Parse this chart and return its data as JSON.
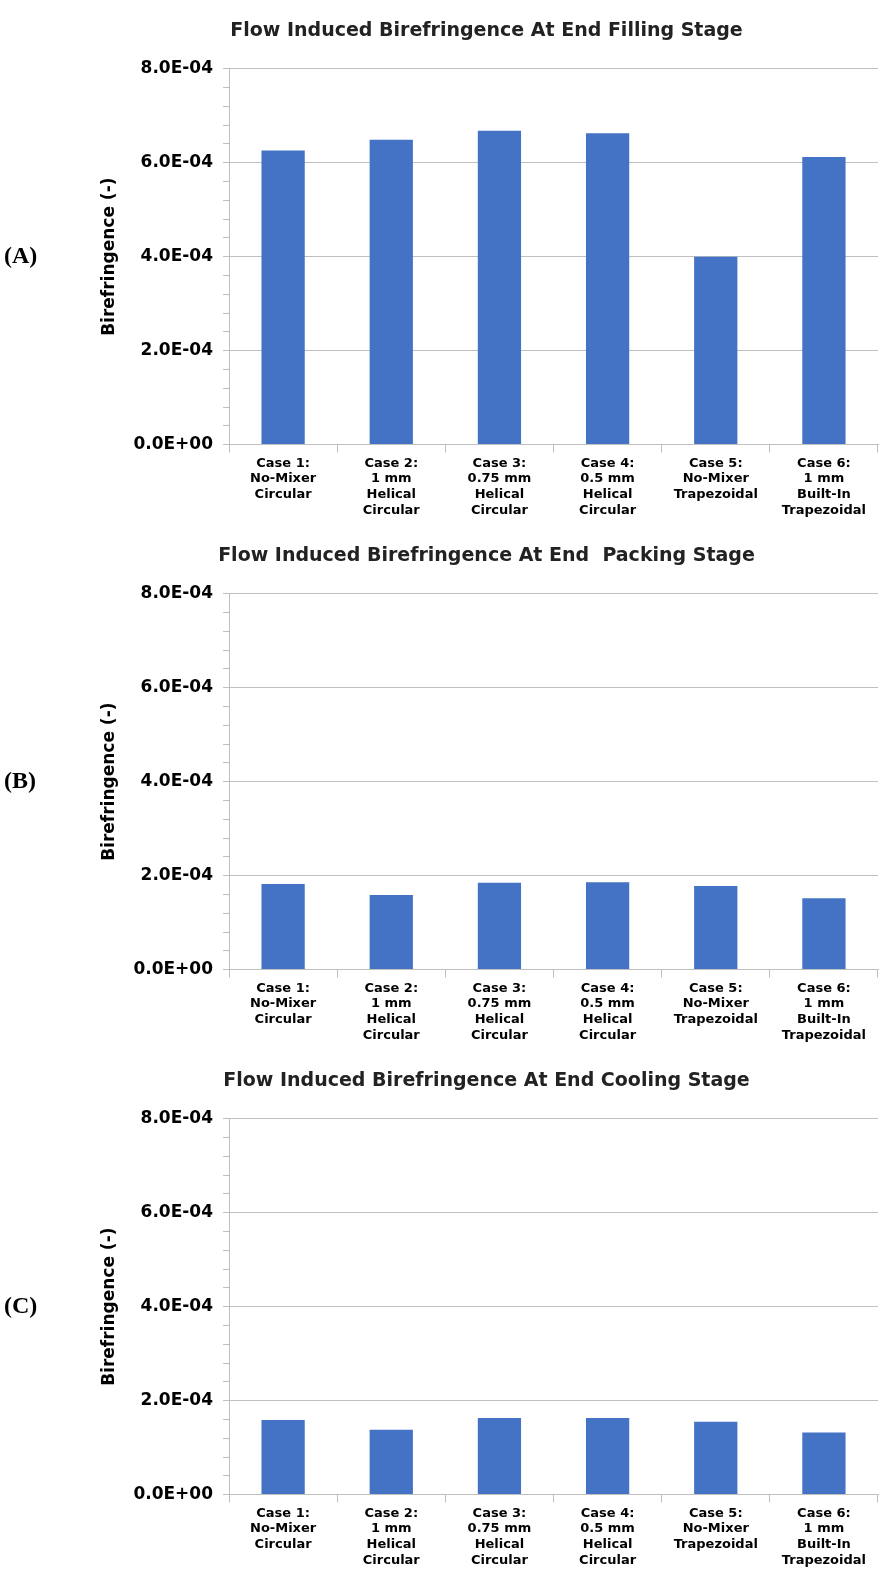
{
  "chart_data": [
    {
      "type": "bar",
      "title": "Flow Induced Birefringence At End Filling Stage",
      "ylabel": "Birefringence (-)",
      "annotations": [
        "(A)"
      ],
      "categories": [
        "Case 1: No-Mixer Circular",
        "Case 2: 1 mm Helical Circular",
        "Case 3: 0.75 mm Helical Circular",
        "Case 4: 0.5 mm Helical Circular",
        "Case 5: No-Mixer Trapezoidal",
        "Case 6: 1 mm Built-In Trapezoidal"
      ],
      "values": [
        0.000626,
        0.000649,
        0.000668,
        0.000663,
        0.0004,
        0.000612
      ],
      "color": "#4472c4",
      "ylim": [
        0,
        0.0008
      ],
      "yticks": [
        {
          "value": 0,
          "label": "0.0E+00"
        },
        {
          "value": 4e-05,
          "label": null
        },
        {
          "value": 8e-05,
          "label": null
        },
        {
          "value": 0.00012,
          "label": null
        },
        {
          "value": 0.00016,
          "label": null
        },
        {
          "value": 0.0002,
          "label": "2.0E-04"
        },
        {
          "value": 0.00024,
          "label": null
        },
        {
          "value": 0.00028,
          "label": null
        },
        {
          "value": 0.00032,
          "label": null
        },
        {
          "value": 0.00036,
          "label": null
        },
        {
          "value": 0.0004,
          "label": "4.0E-04"
        },
        {
          "value": 0.00044,
          "label": null
        },
        {
          "value": 0.00048,
          "label": null
        },
        {
          "value": 0.00052,
          "label": null
        },
        {
          "value": 0.00056,
          "label": null
        },
        {
          "value": 0.0006,
          "label": "6.0E-04"
        },
        {
          "value": 0.00064,
          "label": null
        },
        {
          "value": 0.00068,
          "label": null
        },
        {
          "value": 0.00072,
          "label": null
        },
        {
          "value": 0.00076,
          "label": null
        },
        {
          "value": 0.0008,
          "label": "8.0E-04"
        }
      ],
      "grid": "y"
    },
    {
      "type": "bar",
      "title": "Flow Induced Birefringence At End  Packing Stage",
      "ylabel": "Birefringence (-)",
      "annotations": [
        "(B)"
      ],
      "categories": [
        "Case 1: No-Mixer Circular",
        "Case 2: 1 mm Helical Circular",
        "Case 3: 0.75 mm Helical Circular",
        "Case 4: 0.5 mm Helical Circular",
        "Case 5: No-Mixer Trapezoidal",
        "Case 6: 1 mm Built-In Trapezoidal"
      ],
      "values": [
        0.000182,
        0.000159,
        0.000185,
        0.000186,
        0.000178,
        0.000152
      ],
      "color": "#4472c4",
      "ylim": [
        0,
        0.0008
      ],
      "yticks": [
        {
          "value": 0,
          "label": "0.0E+00"
        },
        {
          "value": 4e-05,
          "label": null
        },
        {
          "value": 8e-05,
          "label": null
        },
        {
          "value": 0.00012,
          "label": null
        },
        {
          "value": 0.00016,
          "label": null
        },
        {
          "value": 0.0002,
          "label": "2.0E-04"
        },
        {
          "value": 0.00024,
          "label": null
        },
        {
          "value": 0.00028,
          "label": null
        },
        {
          "value": 0.00032,
          "label": null
        },
        {
          "value": 0.00036,
          "label": null
        },
        {
          "value": 0.0004,
          "label": "4.0E-04"
        },
        {
          "value": 0.00044,
          "label": null
        },
        {
          "value": 0.00048,
          "label": null
        },
        {
          "value": 0.00052,
          "label": null
        },
        {
          "value": 0.00056,
          "label": null
        },
        {
          "value": 0.0006,
          "label": "6.0E-04"
        },
        {
          "value": 0.00064,
          "label": null
        },
        {
          "value": 0.00068,
          "label": null
        },
        {
          "value": 0.00072,
          "label": null
        },
        {
          "value": 0.00076,
          "label": null
        },
        {
          "value": 0.0008,
          "label": "8.0E-04"
        }
      ],
      "grid": "y"
    },
    {
      "type": "bar",
      "title": "Flow Induced Birefringence At End Cooling Stage",
      "ylabel": "Birefringence (-)",
      "annotations": [
        "(C)"
      ],
      "categories": [
        "Case 1: No-Mixer Circular",
        "Case 2: 1 mm Helical Circular",
        "Case 3: 0.75 mm Helical Circular",
        "Case 4: 0.5 mm Helical Circular",
        "Case 5: No-Mixer Trapezoidal",
        "Case 6: 1 mm Built-In Trapezoidal"
      ],
      "values": [
        0.000159,
        0.000138,
        0.000163,
        0.000163,
        0.000155,
        0.000132
      ],
      "color": "#4472c4",
      "ylim": [
        0,
        0.0008
      ],
      "yticks": [
        {
          "value": 0,
          "label": "0.0E+00"
        },
        {
          "value": 4e-05,
          "label": null
        },
        {
          "value": 8e-05,
          "label": null
        },
        {
          "value": 0.00012,
          "label": null
        },
        {
          "value": 0.00016,
          "label": null
        },
        {
          "value": 0.0002,
          "label": "2.0E-04"
        },
        {
          "value": 0.00024,
          "label": null
        },
        {
          "value": 0.00028,
          "label": null
        },
        {
          "value": 0.00032,
          "label": null
        },
        {
          "value": 0.00036,
          "label": null
        },
        {
          "value": 0.0004,
          "label": "4.0E-04"
        },
        {
          "value": 0.00044,
          "label": null
        },
        {
          "value": 0.00048,
          "label": null
        },
        {
          "value": 0.00052,
          "label": null
        },
        {
          "value": 0.00056,
          "label": null
        },
        {
          "value": 0.0006,
          "label": "6.0E-04"
        },
        {
          "value": 0.00064,
          "label": null
        },
        {
          "value": 0.00068,
          "label": null
        },
        {
          "value": 0.00072,
          "label": null
        },
        {
          "value": 0.00076,
          "label": null
        },
        {
          "value": 0.0008,
          "label": "8.0E-04"
        }
      ],
      "grid": "y"
    }
  ]
}
